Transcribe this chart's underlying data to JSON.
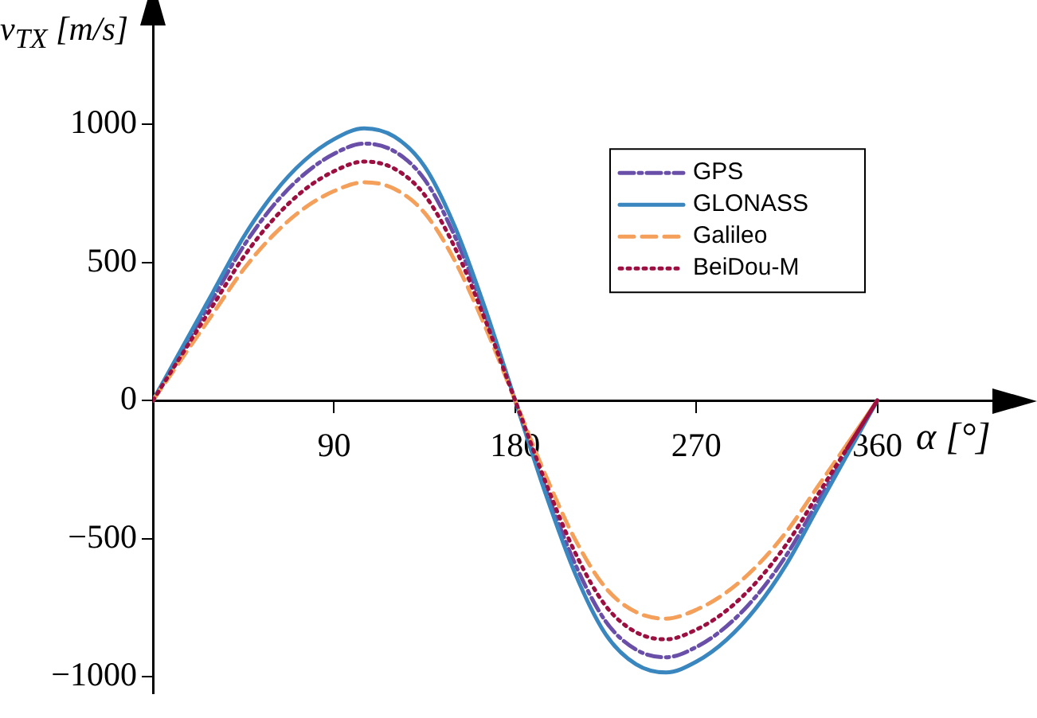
{
  "chart_data": {
    "type": "line",
    "xlabel": "α [°]",
    "ylabel": "v$_{TX}$ [m/s]",
    "x": [
      0,
      15,
      30,
      45,
      60,
      75,
      90,
      105,
      120,
      135,
      150,
      165,
      180,
      195,
      210,
      225,
      240,
      255,
      270,
      285,
      300,
      315,
      330,
      345,
      360
    ],
    "xlim": [
      0,
      433
    ],
    "xticks": [
      90,
      180,
      270,
      360
    ],
    "ylim": [
      -1060,
      1360
    ],
    "yticks": [
      -1000,
      -500,
      0,
      500,
      1000
    ],
    "grid": false,
    "legend": "top right",
    "marker": "none",
    "series": [
      {
        "name": "GPS",
        "color": "#6a4fa8",
        "line_style": "dashdot",
        "values": [
          0,
          186,
          372,
          558,
          707,
          818,
          893,
          930,
          902,
          800,
          595,
          316,
          0,
          -316,
          -595,
          -800,
          -902,
          -930,
          -893,
          -818,
          -707,
          -558,
          -372,
          -186,
          0
        ]
      },
      {
        "name": "GLONASS",
        "color": "#3a87c0",
        "line_style": "solid",
        "values": [
          0,
          197,
          394,
          591,
          749,
          867,
          946,
          985,
          955,
          847,
          630,
          335,
          0,
          -335,
          -630,
          -847,
          -955,
          -985,
          -946,
          -867,
          -749,
          -591,
          -394,
          -197,
          0
        ]
      },
      {
        "name": "Galileo",
        "color": "#f5a05a",
        "line_style": "dashed",
        "values": [
          0,
          158,
          316,
          474,
          600,
          695,
          758,
          790,
          766,
          679,
          506,
          269,
          0,
          -269,
          -506,
          -679,
          -766,
          -790,
          -758,
          -695,
          -600,
          -474,
          -316,
          -158,
          0
        ]
      },
      {
        "name": "BeiDou-M",
        "color": "#9b1040",
        "line_style": "dotted",
        "values": [
          0,
          173,
          346,
          519,
          657,
          761,
          830,
          865,
          839,
          744,
          554,
          294,
          0,
          -294,
          -554,
          -744,
          -839,
          -865,
          -830,
          -761,
          -657,
          -519,
          -346,
          -173,
          0
        ]
      }
    ]
  }
}
